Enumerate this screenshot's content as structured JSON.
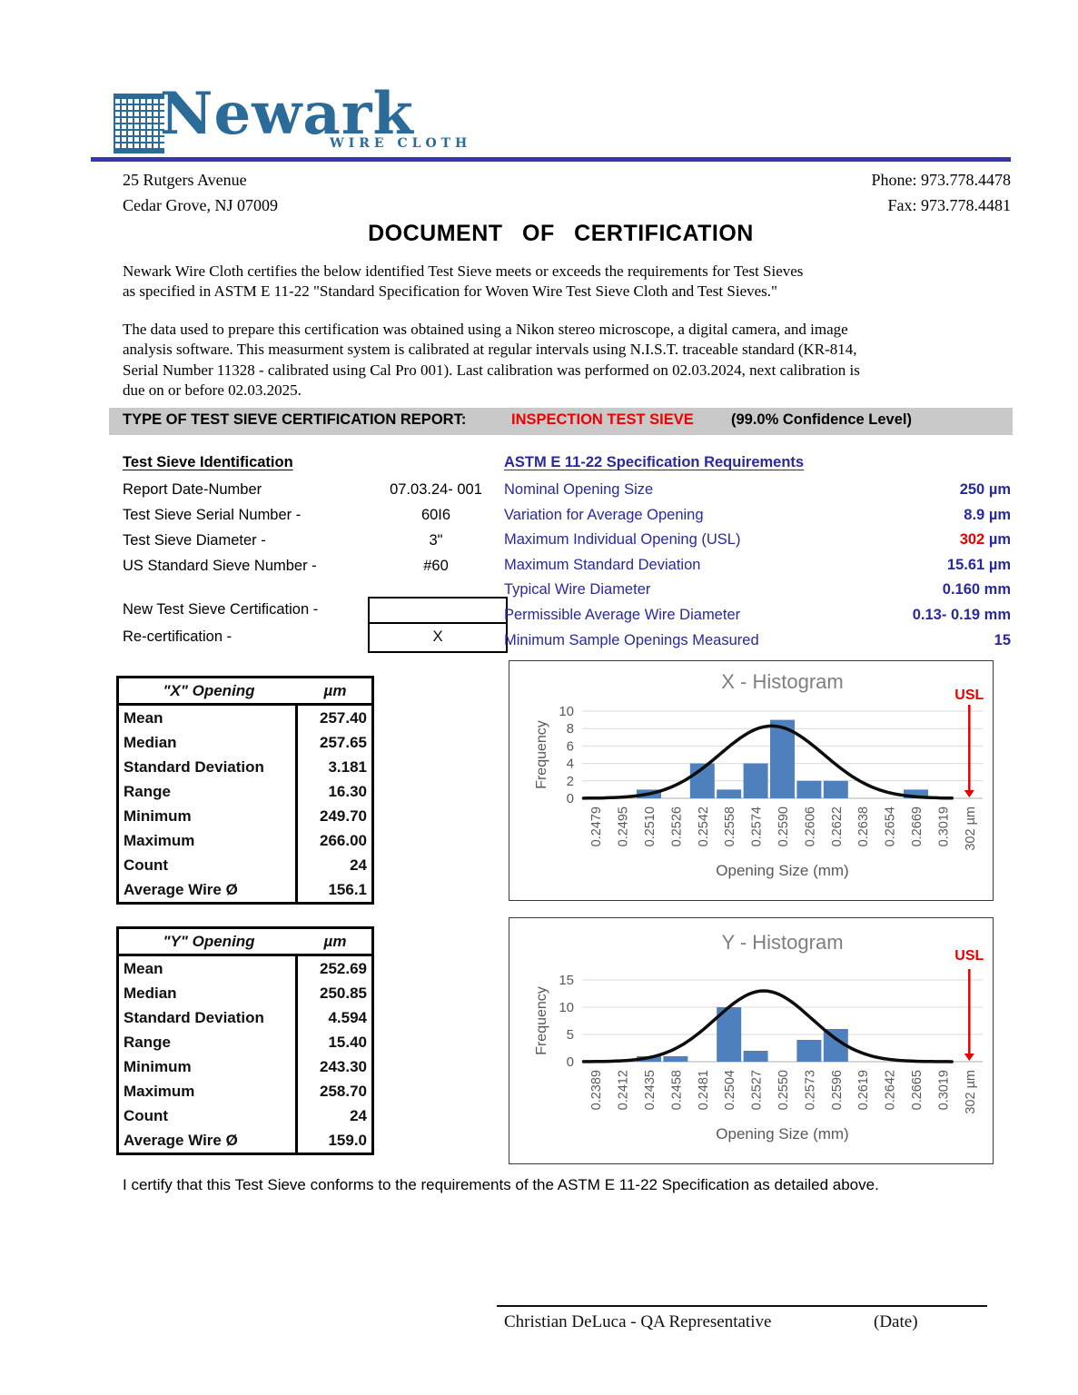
{
  "header": {
    "brand": "Newark",
    "brand_sub": "WIRE CLOTH",
    "address_line1": "25 Rutgers Avenue",
    "address_line2": "Cedar Grove, NJ 07009",
    "phone": "Phone:  973.778.4478",
    "fax": "Fax:  973.778.4481"
  },
  "title": "DOCUMENT OF CERTIFICATION",
  "paragraphs": {
    "certifies": "Newark Wire Cloth certifies the below identified Test Sieve meets or exceeds the requirements for Test Sieves\nas specified in ASTM E 11-22 \"Standard Specification for Woven Wire Test Sieve Cloth and Test Sieves.\"",
    "method": "The data used to prepare this certification was obtained using a Nikon stereo microscope, a digital  camera, and image\nanalysis software.  This measurment system is calibrated at regular intervals using N.I.S.T.  traceable standard (KR-814,\nSerial Number 11328 - calibrated using Cal Pro 001).  Last calibration was performed on 02.03.2024, next calibration is\ndue on or before 02.03.2025."
  },
  "report_type_bar": {
    "label": "TYPE OF TEST SIEVE CERTIFICATION REPORT:",
    "value": "INSPECTION TEST SIEVE",
    "confidence": "(99.0% Confidence Level)"
  },
  "identification": {
    "heading": "Test Sieve Identification",
    "rows": [
      {
        "label": "Report Date-Number",
        "value": "07.03.24- 001"
      },
      {
        "label": "Test Sieve Serial Number -",
        "value": "60I6"
      },
      {
        "label": "Test Sieve Diameter -",
        "value": "3\""
      },
      {
        "label": "US Standard Sieve Number -",
        "value": "#60"
      }
    ],
    "cert_rows": [
      {
        "label": "New Test Sieve Certification -",
        "value": ""
      },
      {
        "label": "Re-certification -",
        "value": "X"
      }
    ]
  },
  "specification": {
    "heading": "ASTM E 11-22 Specification Requirements",
    "rows": [
      {
        "label": "Nominal Opening Size",
        "value": "250",
        "unit": "µm",
        "value_color": "#2828a0"
      },
      {
        "label": "Variation for Average Opening",
        "value": "8.9",
        "unit": "µm",
        "value_color": "#2828a0"
      },
      {
        "label": "Maximum Individual Opening (USL)",
        "value": "302",
        "unit": "µm",
        "value_color": "#e80000"
      },
      {
        "label": "Maximum Standard Deviation",
        "value": "15.61",
        "unit": "µm",
        "value_color": "#2828a0"
      },
      {
        "label": "Typical Wire Diameter",
        "value": "0.160",
        "unit": "mm",
        "value_color": "#2828a0"
      },
      {
        "label": "Permissible Average Wire Diameter",
        "value": "0.13-  0.19",
        "unit": "mm",
        "value_color": "#2828a0"
      },
      {
        "label": "Minimum Sample Openings Measured",
        "value": "15",
        "unit": "",
        "value_color": "#2828a0"
      }
    ]
  },
  "stats_tables": [
    {
      "title": "\"X\" Opening",
      "unit": "µm",
      "rows": [
        {
          "label": "Mean",
          "value": "257.40"
        },
        {
          "label": "Median",
          "value": "257.65"
        },
        {
          "label": "Standard Deviation",
          "value": "3.181"
        },
        {
          "label": "Range",
          "value": "16.30"
        },
        {
          "label": "Minimum",
          "value": "249.70"
        },
        {
          "label": "Maximum",
          "value": "266.00"
        },
        {
          "label": "Count",
          "value": "24"
        },
        {
          "label": "Average Wire Ø",
          "value": "156.1"
        }
      ]
    },
    {
      "title": "\"Y\" Opening",
      "unit": "µm",
      "rows": [
        {
          "label": "Mean",
          "value": "252.69"
        },
        {
          "label": "Median",
          "value": "250.85"
        },
        {
          "label": "Standard Deviation",
          "value": "4.594"
        },
        {
          "label": "Range",
          "value": "15.40"
        },
        {
          "label": "Minimum",
          "value": "243.30"
        },
        {
          "label": "Maximum",
          "value": "258.70"
        },
        {
          "label": "Count",
          "value": "24"
        },
        {
          "label": "Average Wire Ø",
          "value": "159.0"
        }
      ]
    }
  ],
  "chart_data": [
    {
      "type": "bar",
      "title": "X - Histogram",
      "xlabel": "Opening Size (mm)",
      "ylabel": "Frequency",
      "categories": [
        "0.2479",
        "0.2495",
        "0.2510",
        "0.2526",
        "0.2542",
        "0.2558",
        "0.2574",
        "0.2590",
        "0.2606",
        "0.2622",
        "0.2638",
        "0.2654",
        "0.2669",
        "0.3019",
        "302 µm"
      ],
      "values": [
        0,
        0,
        1,
        0,
        4,
        1,
        4,
        9,
        2,
        2,
        0,
        0,
        1,
        0,
        0
      ],
      "yticks": [
        0,
        2,
        4,
        6,
        8,
        10
      ],
      "ylim": [
        0,
        10
      ],
      "usl_label": "USL",
      "usl_index": 14,
      "curve": {
        "center": 6.6,
        "sigma": 1.95,
        "peak": 8.3
      },
      "bar_color": "#4e80bd",
      "legend": "none",
      "grid": true
    },
    {
      "type": "bar",
      "title": "Y - Histogram",
      "xlabel": "Opening Size (mm)",
      "ylabel": "Frequency",
      "categories": [
        "0.2389",
        "0.2412",
        "0.2435",
        "0.2458",
        "0.2481",
        "0.2504",
        "0.2527",
        "0.2550",
        "0.2573",
        "0.2596",
        "0.2619",
        "0.2642",
        "0.2665",
        "0.3019",
        "302 µm"
      ],
      "values": [
        0,
        0,
        1,
        1,
        0,
        10,
        2,
        0,
        4,
        6,
        0,
        0,
        0,
        0,
        0
      ],
      "yticks": [
        0,
        5,
        10,
        15
      ],
      "ylim": [
        0,
        15
      ],
      "usl_label": "USL",
      "usl_index": 14,
      "curve": {
        "center": 6.3,
        "sigma": 1.8,
        "peak": 13
      },
      "bar_color": "#4e80bd",
      "legend": "none",
      "grid": true
    }
  ],
  "footer": {
    "certify_text": "I certify that this Test Sieve conforms to the requirements of the ASTM E 11-22 Specification as detailed above.",
    "signature_name": "Christian DeLuca - QA Representative",
    "date_label": "(Date)"
  },
  "colors": {
    "logo_blue": "#2b6b99",
    "rule_blue": "#3634ae",
    "spec_blue": "#2828a0",
    "alert_red": "#e80000",
    "bar_gray": "#c9c9c9",
    "chart_bar_blue": "#4e80bd",
    "chart_gray_text": "#595959"
  }
}
